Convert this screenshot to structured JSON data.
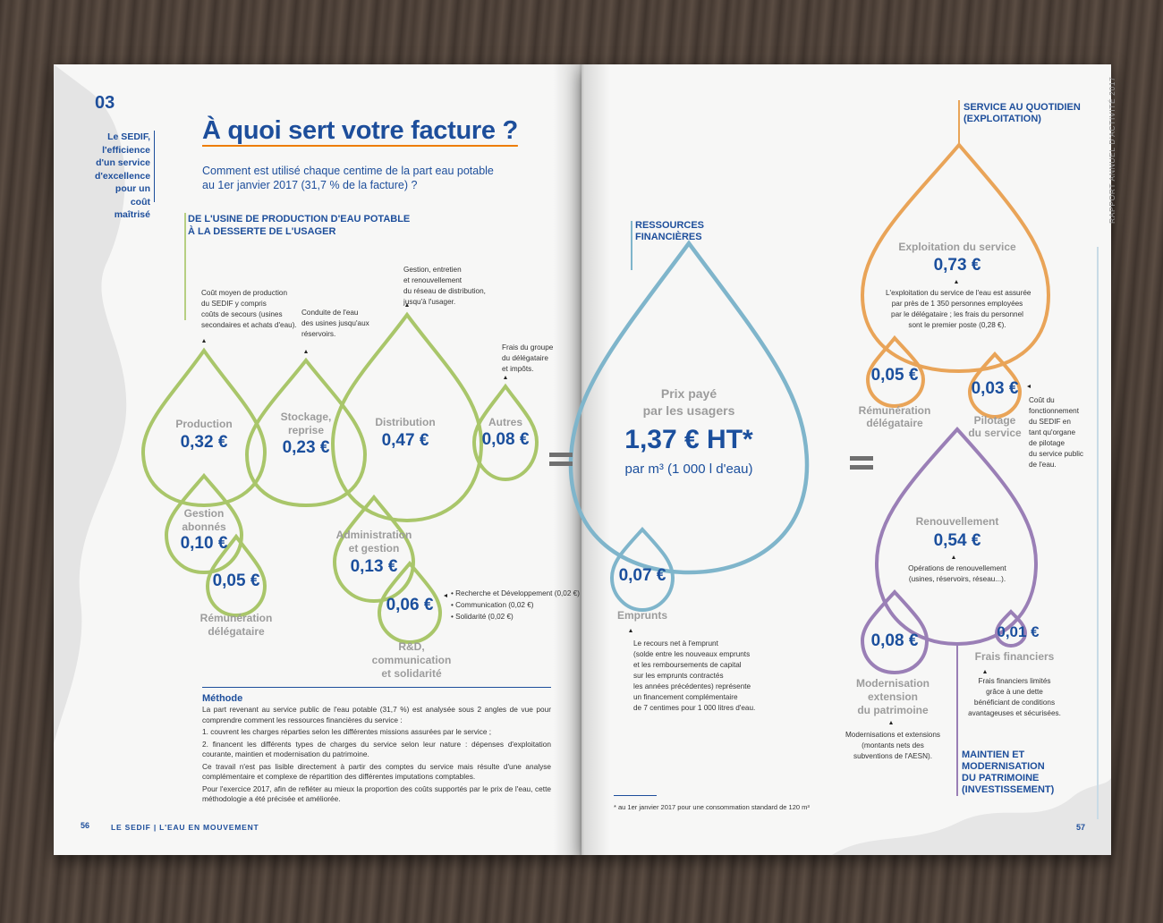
{
  "left_page": {
    "chapter": "03",
    "side_title": "Le SEDIF, l'efficience d'un service d'excellence pour un coût maîtrisé",
    "title": "À quoi sert votre facture ?",
    "subtitle_line1": "Comment est utilisé chaque centime de la part eau potable",
    "subtitle_line2": "au 1er janvier 2017 (31,7 % de la facture) ?",
    "section_label_line1": "DE L'USINE DE PRODUCTION D'EAU POTABLE",
    "section_label_line2": "À LA DESSERTE DE L'USAGER",
    "notes": {
      "production": [
        "Coût moyen de production",
        "du SEDIF y compris",
        "coûts de secours (usines",
        "secondaires et achats d'eau)."
      ],
      "stockage": [
        "Conduite de l'eau",
        "des usines jusqu'aux",
        "réservoirs."
      ],
      "distribution": [
        "Gestion, entretien",
        "et renouvellement",
        "du réseau de distribution,",
        "jusqu'à l'usager."
      ],
      "autres": [
        "Frais du groupe",
        "du délégataire",
        "et impôts."
      ],
      "rd": [
        "• Recherche et Développement (0,02 €)",
        "• Communication (0,02 €)",
        "• Solidarité (0,02 €)"
      ]
    },
    "drops": {
      "production": {
        "label": "Production",
        "value": "0,32 €"
      },
      "stockage": {
        "label1": "Stockage,",
        "label2": "reprise",
        "value": "0,23 €"
      },
      "distribution": {
        "label": "Distribution",
        "value": "0,47 €"
      },
      "autres": {
        "label": "Autres",
        "value": "0,08 €"
      },
      "gestion": {
        "label1": "Gestion",
        "label2": "abonnés",
        "value": "0,10 €"
      },
      "remuneration": {
        "value": "0,05 €",
        "label1": "Rémunération",
        "label2": "délégataire"
      },
      "administration": {
        "label1": "Administration",
        "label2": "et gestion",
        "value": "0,13 €"
      },
      "rd": {
        "value": "0,06 €",
        "label1": "R&D,",
        "label2": "communication",
        "label3": "et solidarité"
      }
    },
    "methode": {
      "title": "Méthode",
      "text": "La part revenant au service public de l'eau potable (31,7 %) est analysée sous 2 angles de vue pour comprendre comment les ressources financières du service :",
      "item1": "1. couvrent les charges réparties selon les différentes missions assurées par le service ;",
      "item2": "2. financent les différents types de charges du service selon leur nature : dépenses d'exploitation courante, maintien et modernisation du patrimoine.",
      "p2": "Ce travail n'est pas lisible directement à partir des comptes du service mais résulte d'une analyse complémentaire et complexe de répartition des différentes imputations comptables.",
      "p3": "Pour l'exercice 2017, afin de refléter au mieux la proportion des coûts supportés par le prix de l'eau, cette méthodologie a été précisée et améliorée."
    },
    "page_number": "56",
    "footer": "LE SEDIF | L'EAU EN MOUVEMENT"
  },
  "right_page": {
    "ressources_label1": "RESSOURCES",
    "ressources_label2": "FINANCIÈRES",
    "main_drop": {
      "label1": "Prix payé",
      "label2": "par les usagers",
      "value": "1,37 € HT*",
      "unit": "par m³ (1 000 l d'eau)"
    },
    "emprunts": {
      "value": "0,07 €",
      "label": "Emprunts",
      "note": [
        "Le recours net à l'emprunt",
        "(solde entre les nouveaux emprunts",
        "et les remboursements de capital",
        "sur les emprunts contractés",
        "les années précédentes) représente",
        "un financement complémentaire",
        "de 7 centimes pour 1 000 litres d'eau."
      ]
    },
    "service_label1": "SERVICE AU QUOTIDIEN",
    "service_label2": "(EXPLOITATION)",
    "exploitation": {
      "label": "Exploitation du service",
      "value": "0,73 €",
      "note": [
        "L'exploitation du service de l'eau est assurée",
        "par près de 1 350 personnes employées",
        "par le délégataire ; les frais du personnel",
        "sont le premier poste (0,28 €)."
      ]
    },
    "remuneration": {
      "value": "0,05 €",
      "label1": "Rémunération",
      "label2": "délégataire"
    },
    "pilotage": {
      "value": "0,03 €",
      "label1": "Pilotage",
      "label2": "du service",
      "note": [
        "Coût du",
        "fonctionnement",
        "du SEDIF en",
        "tant qu'organe",
        "de pilotage",
        "du service public",
        "de l'eau."
      ]
    },
    "renouvellement": {
      "label": "Renouvellement",
      "value": "0,54 €",
      "note": [
        "Opérations de renouvellement",
        "(usines, réservoirs, réseau...)."
      ]
    },
    "modernisation": {
      "value": "0,08 €",
      "label1": "Modernisation",
      "label2": "extension",
      "label3": "du patrimoine",
      "note": [
        "Modernisations et extensions",
        "(montants nets des",
        "subventions de l'AESN)."
      ]
    },
    "frais": {
      "value": "0,01 €",
      "label": "Frais financiers",
      "note": [
        "Frais financiers limités",
        "grâce à une dette",
        "bénéficiant de conditions",
        "avantageuses et sécurisées."
      ]
    },
    "maintien_label": [
      "MAINTIEN ET",
      "MODERNISATION",
      "DU PATRIMOINE",
      "(INVESTISSEMENT)"
    ],
    "footnote": "* au 1er janvier 2017 pour une consommation standard de 120 m³",
    "vertical_text": "RAPPORT ANNUEL D'ACTIVITÉ 2017",
    "page_number": "57"
  },
  "colors": {
    "green": "#a9c66a",
    "blue": "#7fb5cb",
    "orange": "#e9a458",
    "purple": "#9a7fb6",
    "navy": "#1b4f9d",
    "accent": "#ee7d00"
  }
}
